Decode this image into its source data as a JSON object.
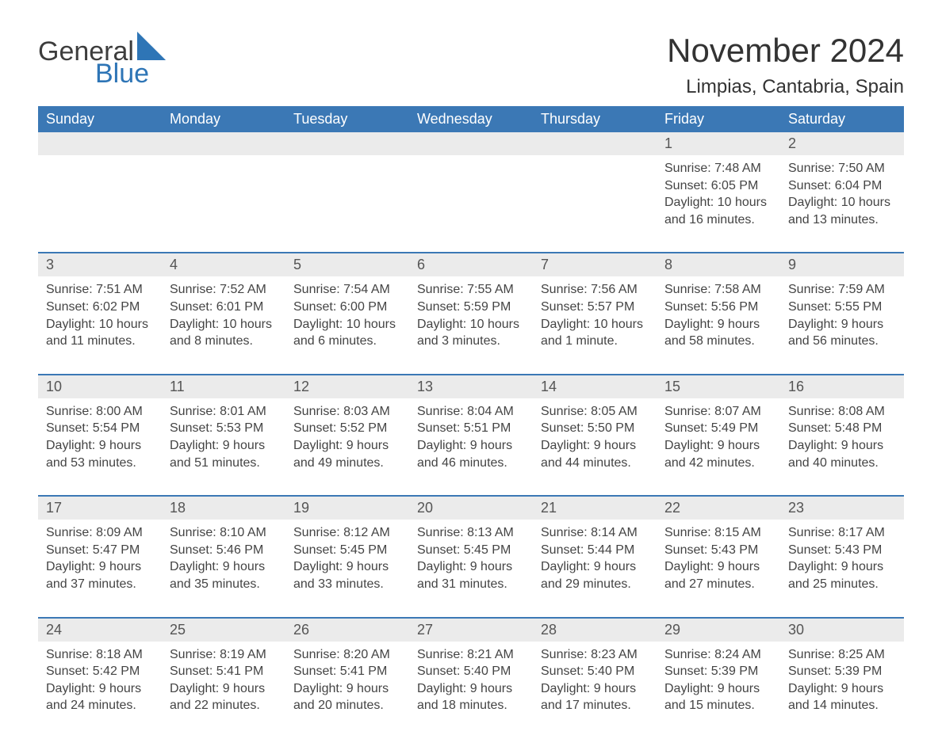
{
  "logo": {
    "text_general": "General",
    "text_blue": "Blue"
  },
  "title": "November 2024",
  "location": "Limpias, Cantabria, Spain",
  "colors": {
    "header_bg": "#3b78b5",
    "header_text": "#ffffff",
    "daynum_bg": "#ebebeb",
    "daynum_text": "#555555",
    "body_text": "#444444",
    "accent_blue": "#2e75b6",
    "rule": "#3b78b5"
  },
  "day_headers": [
    "Sunday",
    "Monday",
    "Tuesday",
    "Wednesday",
    "Thursday",
    "Friday",
    "Saturday"
  ],
  "weeks": [
    {
      "top_border": false,
      "days": [
        {
          "n": "",
          "sunrise": "",
          "sunset": "",
          "daylight": ""
        },
        {
          "n": "",
          "sunrise": "",
          "sunset": "",
          "daylight": ""
        },
        {
          "n": "",
          "sunrise": "",
          "sunset": "",
          "daylight": ""
        },
        {
          "n": "",
          "sunrise": "",
          "sunset": "",
          "daylight": ""
        },
        {
          "n": "",
          "sunrise": "",
          "sunset": "",
          "daylight": ""
        },
        {
          "n": "1",
          "sunrise": "Sunrise: 7:48 AM",
          "sunset": "Sunset: 6:05 PM",
          "daylight": "Daylight: 10 hours and 16 minutes."
        },
        {
          "n": "2",
          "sunrise": "Sunrise: 7:50 AM",
          "sunset": "Sunset: 6:04 PM",
          "daylight": "Daylight: 10 hours and 13 minutes."
        }
      ]
    },
    {
      "top_border": true,
      "days": [
        {
          "n": "3",
          "sunrise": "Sunrise: 7:51 AM",
          "sunset": "Sunset: 6:02 PM",
          "daylight": "Daylight: 10 hours and 11 minutes."
        },
        {
          "n": "4",
          "sunrise": "Sunrise: 7:52 AM",
          "sunset": "Sunset: 6:01 PM",
          "daylight": "Daylight: 10 hours and 8 minutes."
        },
        {
          "n": "5",
          "sunrise": "Sunrise: 7:54 AM",
          "sunset": "Sunset: 6:00 PM",
          "daylight": "Daylight: 10 hours and 6 minutes."
        },
        {
          "n": "6",
          "sunrise": "Sunrise: 7:55 AM",
          "sunset": "Sunset: 5:59 PM",
          "daylight": "Daylight: 10 hours and 3 minutes."
        },
        {
          "n": "7",
          "sunrise": "Sunrise: 7:56 AM",
          "sunset": "Sunset: 5:57 PM",
          "daylight": "Daylight: 10 hours and 1 minute."
        },
        {
          "n": "8",
          "sunrise": "Sunrise: 7:58 AM",
          "sunset": "Sunset: 5:56 PM",
          "daylight": "Daylight: 9 hours and 58 minutes."
        },
        {
          "n": "9",
          "sunrise": "Sunrise: 7:59 AM",
          "sunset": "Sunset: 5:55 PM",
          "daylight": "Daylight: 9 hours and 56 minutes."
        }
      ]
    },
    {
      "top_border": true,
      "days": [
        {
          "n": "10",
          "sunrise": "Sunrise: 8:00 AM",
          "sunset": "Sunset: 5:54 PM",
          "daylight": "Daylight: 9 hours and 53 minutes."
        },
        {
          "n": "11",
          "sunrise": "Sunrise: 8:01 AM",
          "sunset": "Sunset: 5:53 PM",
          "daylight": "Daylight: 9 hours and 51 minutes."
        },
        {
          "n": "12",
          "sunrise": "Sunrise: 8:03 AM",
          "sunset": "Sunset: 5:52 PM",
          "daylight": "Daylight: 9 hours and 49 minutes."
        },
        {
          "n": "13",
          "sunrise": "Sunrise: 8:04 AM",
          "sunset": "Sunset: 5:51 PM",
          "daylight": "Daylight: 9 hours and 46 minutes."
        },
        {
          "n": "14",
          "sunrise": "Sunrise: 8:05 AM",
          "sunset": "Sunset: 5:50 PM",
          "daylight": "Daylight: 9 hours and 44 minutes."
        },
        {
          "n": "15",
          "sunrise": "Sunrise: 8:07 AM",
          "sunset": "Sunset: 5:49 PM",
          "daylight": "Daylight: 9 hours and 42 minutes."
        },
        {
          "n": "16",
          "sunrise": "Sunrise: 8:08 AM",
          "sunset": "Sunset: 5:48 PM",
          "daylight": "Daylight: 9 hours and 40 minutes."
        }
      ]
    },
    {
      "top_border": true,
      "days": [
        {
          "n": "17",
          "sunrise": "Sunrise: 8:09 AM",
          "sunset": "Sunset: 5:47 PM",
          "daylight": "Daylight: 9 hours and 37 minutes."
        },
        {
          "n": "18",
          "sunrise": "Sunrise: 8:10 AM",
          "sunset": "Sunset: 5:46 PM",
          "daylight": "Daylight: 9 hours and 35 minutes."
        },
        {
          "n": "19",
          "sunrise": "Sunrise: 8:12 AM",
          "sunset": "Sunset: 5:45 PM",
          "daylight": "Daylight: 9 hours and 33 minutes."
        },
        {
          "n": "20",
          "sunrise": "Sunrise: 8:13 AM",
          "sunset": "Sunset: 5:45 PM",
          "daylight": "Daylight: 9 hours and 31 minutes."
        },
        {
          "n": "21",
          "sunrise": "Sunrise: 8:14 AM",
          "sunset": "Sunset: 5:44 PM",
          "daylight": "Daylight: 9 hours and 29 minutes."
        },
        {
          "n": "22",
          "sunrise": "Sunrise: 8:15 AM",
          "sunset": "Sunset: 5:43 PM",
          "daylight": "Daylight: 9 hours and 27 minutes."
        },
        {
          "n": "23",
          "sunrise": "Sunrise: 8:17 AM",
          "sunset": "Sunset: 5:43 PM",
          "daylight": "Daylight: 9 hours and 25 minutes."
        }
      ]
    },
    {
      "top_border": true,
      "days": [
        {
          "n": "24",
          "sunrise": "Sunrise: 8:18 AM",
          "sunset": "Sunset: 5:42 PM",
          "daylight": "Daylight: 9 hours and 24 minutes."
        },
        {
          "n": "25",
          "sunrise": "Sunrise: 8:19 AM",
          "sunset": "Sunset: 5:41 PM",
          "daylight": "Daylight: 9 hours and 22 minutes."
        },
        {
          "n": "26",
          "sunrise": "Sunrise: 8:20 AM",
          "sunset": "Sunset: 5:41 PM",
          "daylight": "Daylight: 9 hours and 20 minutes."
        },
        {
          "n": "27",
          "sunrise": "Sunrise: 8:21 AM",
          "sunset": "Sunset: 5:40 PM",
          "daylight": "Daylight: 9 hours and 18 minutes."
        },
        {
          "n": "28",
          "sunrise": "Sunrise: 8:23 AM",
          "sunset": "Sunset: 5:40 PM",
          "daylight": "Daylight: 9 hours and 17 minutes."
        },
        {
          "n": "29",
          "sunrise": "Sunrise: 8:24 AM",
          "sunset": "Sunset: 5:39 PM",
          "daylight": "Daylight: 9 hours and 15 minutes."
        },
        {
          "n": "30",
          "sunrise": "Sunrise: 8:25 AM",
          "sunset": "Sunset: 5:39 PM",
          "daylight": "Daylight: 9 hours and 14 minutes."
        }
      ]
    }
  ]
}
